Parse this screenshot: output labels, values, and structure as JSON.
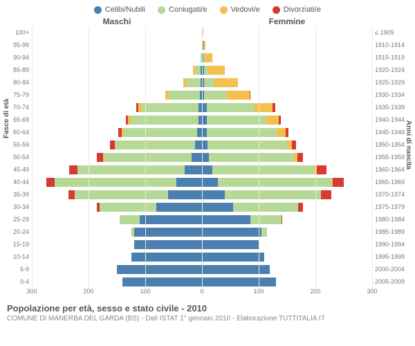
{
  "legend": [
    {
      "label": "Celibi/Nubili",
      "color": "#4a7fb0"
    },
    {
      "label": "Coniugati/e",
      "color": "#b7d998"
    },
    {
      "label": "Vedovi/e",
      "color": "#f3c04e"
    },
    {
      "label": "Divorziati/e",
      "color": "#d63a34"
    }
  ],
  "gender_left": "Maschi",
  "gender_right": "Femmine",
  "axis_left_title": "Fasce di età",
  "axis_right_title": "Anni di nascita",
  "title": "Popolazione per età, sesso e stato civile - 2010",
  "subtitle": "COMUNE DI MANERBA DEL GARDA (BS) - Dati ISTAT 1° gennaio 2010 - Elaborazione TUTTITALIA.IT",
  "x_ticks": [
    300,
    200,
    100,
    0,
    100,
    200,
    300
  ],
  "x_max": 300,
  "colors": {
    "single": "#4a7fb0",
    "married": "#b7d998",
    "widowed": "#f3c04e",
    "divorced": "#d63a34",
    "grid": "#e8e8e8",
    "axis_dash": "#bbbbbb",
    "text": "#555555",
    "text_muted": "#888888",
    "bg": "#ffffff"
  },
  "age_labels": [
    "100+",
    "95-99",
    "90-94",
    "85-89",
    "80-84",
    "75-79",
    "70-74",
    "65-69",
    "60-64",
    "55-59",
    "50-54",
    "45-49",
    "40-44",
    "35-39",
    "30-34",
    "25-29",
    "20-24",
    "15-19",
    "10-14",
    "5-9",
    "0-4"
  ],
  "birth_labels": [
    "≤ 1909",
    "1910-1914",
    "1915-1919",
    "1920-1924",
    "1925-1929",
    "1930-1934",
    "1935-1939",
    "1940-1944",
    "1945-1949",
    "1950-1954",
    "1955-1959",
    "1960-1964",
    "1965-1969",
    "1970-1974",
    "1975-1979",
    "1980-1984",
    "1985-1989",
    "1990-1994",
    "1995-1999",
    "2000-2004",
    "2005-2009"
  ],
  "rows": [
    {
      "m": {
        "s": 0,
        "c": 0,
        "w": 0,
        "d": 0
      },
      "f": {
        "s": 0,
        "c": 0,
        "w": 2,
        "d": 0
      }
    },
    {
      "m": {
        "s": 0,
        "c": 0,
        "w": 0,
        "d": 0
      },
      "f": {
        "s": 2,
        "c": 0,
        "w": 4,
        "d": 0
      }
    },
    {
      "m": {
        "s": 0,
        "c": 2,
        "w": 0,
        "d": 0
      },
      "f": {
        "s": 2,
        "c": 2,
        "w": 14,
        "d": 0
      }
    },
    {
      "m": {
        "s": 2,
        "c": 10,
        "w": 4,
        "d": 0
      },
      "f": {
        "s": 4,
        "c": 6,
        "w": 30,
        "d": 0
      }
    },
    {
      "m": {
        "s": 2,
        "c": 25,
        "w": 6,
        "d": 0
      },
      "f": {
        "s": 4,
        "c": 18,
        "w": 42,
        "d": 0
      }
    },
    {
      "m": {
        "s": 4,
        "c": 55,
        "w": 6,
        "d": 0
      },
      "f": {
        "s": 4,
        "c": 40,
        "w": 40,
        "d": 2
      }
    },
    {
      "m": {
        "s": 6,
        "c": 100,
        "w": 6,
        "d": 4
      },
      "f": {
        "s": 8,
        "c": 85,
        "w": 32,
        "d": 4
      }
    },
    {
      "m": {
        "s": 6,
        "c": 120,
        "w": 4,
        "d": 4
      },
      "f": {
        "s": 8,
        "c": 105,
        "w": 22,
        "d": 4
      }
    },
    {
      "m": {
        "s": 8,
        "c": 130,
        "w": 4,
        "d": 6
      },
      "f": {
        "s": 8,
        "c": 125,
        "w": 14,
        "d": 6
      }
    },
    {
      "m": {
        "s": 12,
        "c": 140,
        "w": 2,
        "d": 8
      },
      "f": {
        "s": 10,
        "c": 140,
        "w": 8,
        "d": 8
      }
    },
    {
      "m": {
        "s": 18,
        "c": 155,
        "w": 2,
        "d": 10
      },
      "f": {
        "s": 12,
        "c": 150,
        "w": 6,
        "d": 10
      }
    },
    {
      "m": {
        "s": 30,
        "c": 190,
        "w": 0,
        "d": 14
      },
      "f": {
        "s": 18,
        "c": 180,
        "w": 4,
        "d": 18
      }
    },
    {
      "m": {
        "s": 45,
        "c": 215,
        "w": 0,
        "d": 14
      },
      "f": {
        "s": 28,
        "c": 200,
        "w": 2,
        "d": 20
      }
    },
    {
      "m": {
        "s": 60,
        "c": 165,
        "w": 0,
        "d": 10
      },
      "f": {
        "s": 40,
        "c": 170,
        "w": 0,
        "d": 18
      }
    },
    {
      "m": {
        "s": 80,
        "c": 100,
        "w": 0,
        "d": 6
      },
      "f": {
        "s": 55,
        "c": 115,
        "w": 0,
        "d": 8
      }
    },
    {
      "m": {
        "s": 110,
        "c": 35,
        "w": 0,
        "d": 0
      },
      "f": {
        "s": 85,
        "c": 55,
        "w": 0,
        "d": 2
      }
    },
    {
      "m": {
        "s": 120,
        "c": 4,
        "w": 0,
        "d": 0
      },
      "f": {
        "s": 105,
        "c": 10,
        "w": 0,
        "d": 0
      }
    },
    {
      "m": {
        "s": 120,
        "c": 0,
        "w": 0,
        "d": 0
      },
      "f": {
        "s": 100,
        "c": 0,
        "w": 0,
        "d": 0
      }
    },
    {
      "m": {
        "s": 125,
        "c": 0,
        "w": 0,
        "d": 0
      },
      "f": {
        "s": 110,
        "c": 0,
        "w": 0,
        "d": 0
      }
    },
    {
      "m": {
        "s": 150,
        "c": 0,
        "w": 0,
        "d": 0
      },
      "f": {
        "s": 120,
        "c": 0,
        "w": 0,
        "d": 0
      }
    },
    {
      "m": {
        "s": 140,
        "c": 0,
        "w": 0,
        "d": 0
      },
      "f": {
        "s": 130,
        "c": 0,
        "w": 0,
        "d": 0
      }
    }
  ]
}
